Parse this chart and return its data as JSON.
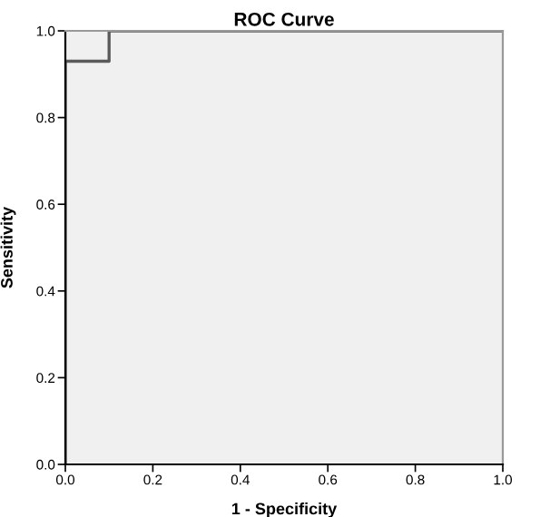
{
  "chart_data": {
    "type": "line",
    "title": "ROC Curve",
    "xlabel": "1 - Specificity",
    "ylabel": "Sensitivity",
    "x": [
      0,
      0,
      0.1,
      0.1,
      1
    ],
    "series": [
      {
        "color": "#5a5a5a",
        "values": [
          0,
          0.93,
          0.93,
          1,
          1
        ]
      }
    ],
    "xlim": [
      0,
      1
    ],
    "ylim": [
      0,
      1
    ],
    "xticks": [
      {
        "value": 0,
        "label": "0.0"
      },
      0.2,
      0.4,
      0.6,
      0.8,
      {
        "value": 1,
        "label": "1.0"
      }
    ],
    "yticks": [
      {
        "value": 0,
        "label": "0.0"
      },
      0.2,
      0.4,
      0.6,
      0.8,
      {
        "value": 1,
        "label": "1.0"
      }
    ],
    "grid": false,
    "marker": "none",
    "line_style": "solid"
  }
}
